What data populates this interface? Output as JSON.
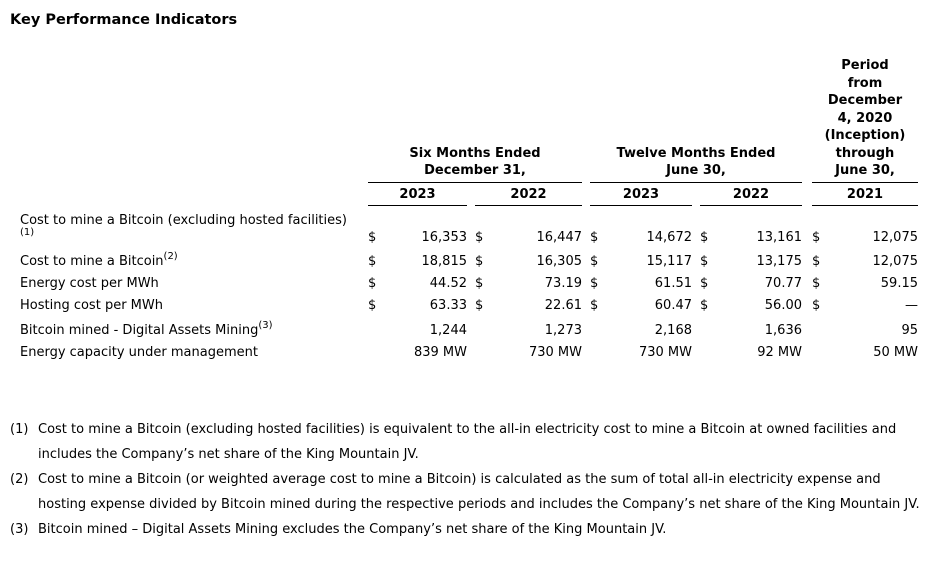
{
  "title": "Key Performance Indicators",
  "table": {
    "groups": [
      {
        "heading": "Six Months Ended December 31,",
        "lines": [
          "Six Months Ended",
          "December 31,"
        ]
      },
      {
        "heading": "Twelve Months Ended June 30,",
        "lines": [
          "Twelve Months Ended",
          "June 30,"
        ]
      },
      {
        "heading": "Period from December 4, 2020 (Inception) through June 30,",
        "lines": [
          "Period",
          "from",
          "December",
          "4, 2020",
          "(Inception)",
          "through",
          "June 30,"
        ]
      }
    ],
    "years": [
      "2023",
      "2022",
      "2023",
      "2022",
      "2021"
    ],
    "rows": [
      {
        "label": "Cost to mine a Bitcoin (excluding hosted facilities)",
        "footnote_ref": "(1)",
        "currency": "$",
        "values": [
          "16,353",
          "16,447",
          "14,672",
          "13,161",
          "12,075"
        ]
      },
      {
        "label": "Cost to mine a Bitcoin",
        "footnote_ref": "(2)",
        "currency": "$",
        "values": [
          "18,815",
          "16,305",
          "15,117",
          "13,175",
          "12,075"
        ]
      },
      {
        "label": "Energy cost per MWh",
        "footnote_ref": "",
        "currency": "$",
        "values": [
          "44.52",
          "73.19",
          "61.51",
          "70.77",
          "59.15"
        ]
      },
      {
        "label": "Hosting cost per MWh",
        "footnote_ref": "",
        "currency": "$",
        "values": [
          "63.33",
          "22.61",
          "60.47",
          "56.00",
          "—"
        ]
      },
      {
        "label": "Bitcoin mined - Digital Assets Mining",
        "footnote_ref": "(3)",
        "currency": "",
        "values": [
          "1,244",
          "1,273",
          "2,168",
          "1,636",
          "95"
        ]
      },
      {
        "label": "Energy capacity under management",
        "footnote_ref": "",
        "currency": "",
        "values": [
          "839 MW",
          "730 MW",
          "730 MW",
          "92 MW",
          "50 MW"
        ]
      }
    ]
  },
  "footnotes": [
    {
      "marker": "(1)",
      "text": "Cost to mine a Bitcoin (excluding hosted facilities) is equivalent to the all-in electricity cost to mine a Bitcoin at owned facilities and includes the Company’s net share of the King Mountain JV."
    },
    {
      "marker": "(2)",
      "text": "Cost to mine a Bitcoin (or weighted average cost to mine a Bitcoin) is calculated as the sum of total all-in electricity expense and hosting expense divided by Bitcoin mined during the respective periods and includes the Company’s net share of the King Mountain JV."
    },
    {
      "marker": "(3)",
      "text": "Bitcoin mined – Digital Assets Mining excludes the Company’s net share of the King Mountain JV."
    }
  ]
}
